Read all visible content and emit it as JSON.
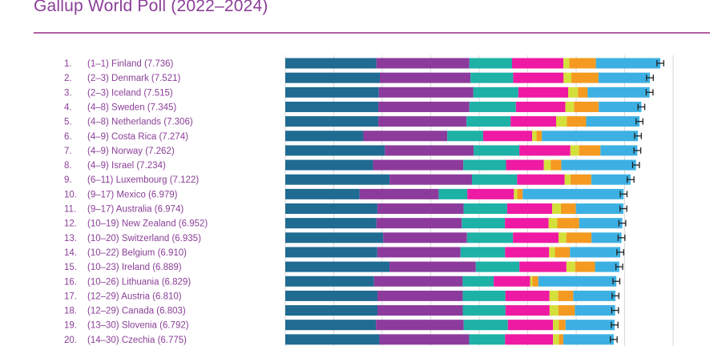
{
  "header": {
    "title": "Gallup World Poll (2022–2024)"
  },
  "colors": {
    "title": "#8b3f98",
    "rule": "#b0609f",
    "segments": [
      "#1f6b92",
      "#8c3b9c",
      "#1eb1a6",
      "#ee1aa3",
      "#d4e03a",
      "#f59a21",
      "#3db0e3"
    ],
    "grid": "#d9d9d9",
    "error_bar": "#222222"
  },
  "chart_data": {
    "type": "bar",
    "orientation": "horizontal",
    "stacked": true,
    "xlim": [
      0,
      8
    ],
    "grid": true,
    "legend": "none",
    "rows": [
      {
        "rank": "1.",
        "label": "(1–1) Finland (7.736)",
        "score": 7.736,
        "ci": 0.07,
        "segments": [
          1.88,
          1.92,
          0.88,
          1.06,
          0.12,
          0.55,
          1.33
        ]
      },
      {
        "rank": "2.",
        "label": "(2–3) Denmark (7.521)",
        "score": 7.521,
        "ci": 0.07,
        "segments": [
          1.95,
          1.87,
          0.88,
          1.04,
          0.16,
          0.56,
          1.06
        ]
      },
      {
        "rank": "3.",
        "label": "(2–3) Iceland (7.515)",
        "score": 7.515,
        "ci": 0.07,
        "segments": [
          1.93,
          1.95,
          0.93,
          1.03,
          0.2,
          0.2,
          1.28
        ]
      },
      {
        "rank": "4.",
        "label": "(4–8) Sweden (7.345)",
        "score": 7.345,
        "ci": 0.07,
        "segments": [
          1.92,
          1.88,
          0.96,
          1.02,
          0.18,
          0.51,
          0.88
        ]
      },
      {
        "rank": "5.",
        "label": "(4–8) Netherlands (7.306)",
        "score": 7.306,
        "ci": 0.07,
        "segments": [
          1.92,
          1.82,
          0.91,
          0.94,
          0.22,
          0.4,
          1.1
        ]
      },
      {
        "rank": "6.",
        "label": "(4–9) Costa Rica (7.274)",
        "score": 7.274,
        "ci": 0.07,
        "segments": [
          1.61,
          1.73,
          0.74,
          1.01,
          0.09,
          0.11,
          1.98
        ]
      },
      {
        "rank": "7.",
        "label": "(4–9) Norway (7.262)",
        "score": 7.262,
        "ci": 0.07,
        "segments": [
          2.05,
          1.83,
          0.94,
          1.05,
          0.18,
          0.44,
          0.76
        ]
      },
      {
        "rank": "8.",
        "label": "(4–9) Israel (7.234)",
        "score": 7.234,
        "ci": 0.07,
        "segments": [
          1.81,
          1.86,
          0.88,
          0.78,
          0.14,
          0.22,
          1.54
        ]
      },
      {
        "rank": "9.",
        "label": "(6–11) Luxembourg (7.122)",
        "score": 7.122,
        "ci": 0.07,
        "segments": [
          2.15,
          1.7,
          0.93,
          0.98,
          0.12,
          0.43,
          0.81
        ]
      },
      {
        "rank": "10.",
        "label": "(9–17) Mexico (6.979)",
        "score": 6.979,
        "ci": 0.07,
        "segments": [
          1.53,
          1.63,
          0.59,
          0.96,
          0.07,
          0.11,
          2.08
        ]
      },
      {
        "rank": "11.",
        "label": "(9–17) Australia (6.974)",
        "score": 6.974,
        "ci": 0.07,
        "segments": [
          1.9,
          1.78,
          0.9,
          0.93,
          0.18,
          0.31,
          0.98
        ]
      },
      {
        "rank": "12.",
        "label": "(10–19) New Zealand (6.952)",
        "score": 6.952,
        "ci": 0.07,
        "segments": [
          1.88,
          1.76,
          0.89,
          0.9,
          0.18,
          0.45,
          0.89
        ]
      },
      {
        "rank": "13.",
        "label": "(10–20) Switzerland (6.935)",
        "score": 6.935,
        "ci": 0.07,
        "segments": [
          2.02,
          1.73,
          0.95,
          0.94,
          0.16,
          0.52,
          0.62
        ]
      },
      {
        "rank": "14.",
        "label": "(10–22) Belgium (6.910)",
        "score": 6.91,
        "ci": 0.07,
        "segments": [
          1.9,
          1.72,
          0.92,
          0.91,
          0.12,
          0.31,
          1.04
        ]
      },
      {
        "rank": "15.",
        "label": "(10–23) Ireland (6.889)",
        "score": 6.889,
        "ci": 0.07,
        "segments": [
          2.15,
          1.78,
          0.9,
          0.97,
          0.18,
          0.41,
          0.5
        ]
      },
      {
        "rank": "16.",
        "label": "(10–26) Lithuania (6.829)",
        "score": 6.829,
        "ci": 0.07,
        "segments": [
          1.83,
          1.83,
          0.64,
          0.75,
          0.05,
          0.12,
          1.61
        ]
      },
      {
        "rank": "17.",
        "label": "(12–29) Austria (6.810)",
        "score": 6.81,
        "ci": 0.07,
        "segments": [
          1.9,
          1.76,
          0.88,
          0.91,
          0.18,
          0.31,
          0.87
        ]
      },
      {
        "rank": "18.",
        "label": "(12–29) Canada (6.803)",
        "score": 6.803,
        "ci": 0.07,
        "segments": [
          1.9,
          1.76,
          0.88,
          0.91,
          0.18,
          0.34,
          0.83
        ]
      },
      {
        "rank": "19.",
        "label": "(13–30) Slovenia (6.792)",
        "score": 6.792,
        "ci": 0.07,
        "segments": [
          1.87,
          1.81,
          0.91,
          0.93,
          0.12,
          0.14,
          1.01
        ]
      },
      {
        "rank": "20.",
        "label": "(14–30) Czechia (6.775)",
        "score": 6.775,
        "ci": 0.07,
        "segments": [
          1.94,
          1.85,
          0.74,
          0.99,
          0.12,
          0.09,
          1.04
        ]
      }
    ]
  }
}
